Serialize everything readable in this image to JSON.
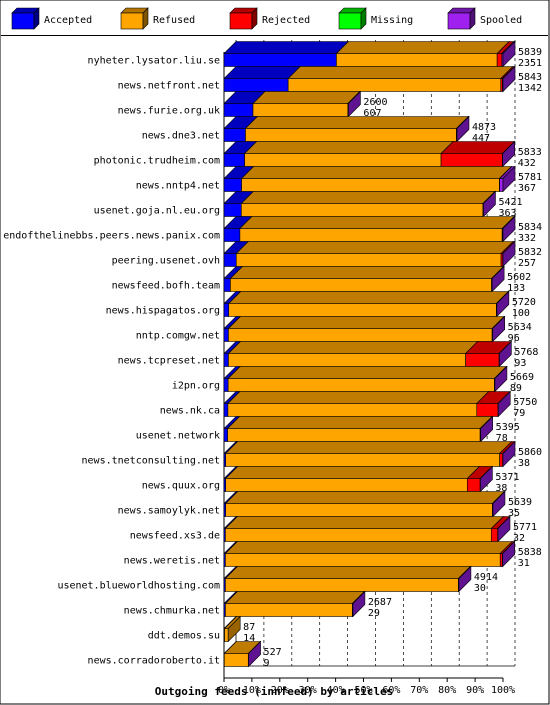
{
  "chart_data": {
    "type": "bar",
    "orientation": "horizontal",
    "stacked": true,
    "percent_scale": true,
    "title": "Outgoing feeds (innfeed) by articles",
    "legend_position": "top",
    "grid": true,
    "xlim": [
      0,
      100
    ],
    "x_ticks": [
      "0%",
      "10%",
      "20%",
      "30%",
      "40%",
      "50%",
      "60%",
      "70%",
      "80%",
      "90%",
      "100%"
    ],
    "series": [
      {
        "name": "Accepted",
        "color": "#0000ff"
      },
      {
        "name": "Refused",
        "color": "#ffa500"
      },
      {
        "name": "Rejected",
        "color": "#ff0000"
      },
      {
        "name": "Missing",
        "color": "#00ff00"
      },
      {
        "name": "Spooled",
        "color": "#a020f0"
      }
    ],
    "rows": [
      {
        "label": "nyheter.lysator.liu.se",
        "offered": 5839,
        "accepted": 2351,
        "segments": [
          40.3,
          57.6,
          1.7,
          0,
          0.4
        ]
      },
      {
        "label": "news.netfront.net",
        "offered": 5843,
        "accepted": 1342,
        "segments": [
          23.0,
          76.2,
          0.6,
          0,
          0.2
        ]
      },
      {
        "label": "news.furie.org.uk",
        "offered": 2600,
        "accepted": 607,
        "segments": [
          10.4,
          34.0,
          0.1,
          0,
          0.1
        ]
      },
      {
        "label": "news.dne3.net",
        "offered": 4873,
        "accepted": 447,
        "segments": [
          7.7,
          75.6,
          0.1,
          0,
          0.1
        ]
      },
      {
        "label": "photonic.trudheim.com",
        "offered": 5833,
        "accepted": 432,
        "segments": [
          7.4,
          70.4,
          22.0,
          0,
          0.1
        ]
      },
      {
        "label": "news.nntp4.net",
        "offered": 5781,
        "accepted": 367,
        "segments": [
          6.3,
          92.4,
          0.1,
          0,
          1.2
        ]
      },
      {
        "label": "usenet.goja.nl.eu.org",
        "offered": 5421,
        "accepted": 363,
        "segments": [
          6.2,
          86.6,
          0.1,
          0,
          0.1
        ]
      },
      {
        "label": "endofthelinebbs.peers.news.panix.com",
        "offered": 5834,
        "accepted": 332,
        "segments": [
          5.7,
          94.0,
          0.2,
          0,
          0.1
        ]
      },
      {
        "label": "peering.usenet.ovh",
        "offered": 5832,
        "accepted": 257,
        "segments": [
          4.4,
          94.9,
          0.6,
          0,
          0.1
        ]
      },
      {
        "label": "newsfeed.bofh.team",
        "offered": 5602,
        "accepted": 133,
        "segments": [
          2.3,
          93.6,
          0.1,
          0,
          0.1
        ]
      },
      {
        "label": "news.hispagatos.org",
        "offered": 5720,
        "accepted": 100,
        "segments": [
          1.7,
          95.9,
          0.1,
          0,
          0.1
        ]
      },
      {
        "label": "nntp.comgw.net",
        "offered": 5634,
        "accepted": 96,
        "segments": [
          1.6,
          94.5,
          0.1,
          0,
          0.1
        ]
      },
      {
        "label": "news.tcpreset.net",
        "offered": 5768,
        "accepted": 93,
        "segments": [
          1.6,
          85.0,
          12.0,
          0,
          0.1
        ]
      },
      {
        "label": "i2pn.org",
        "offered": 5669,
        "accepted": 89,
        "segments": [
          1.5,
          95.4,
          0.1,
          0,
          0.1
        ]
      },
      {
        "label": "news.nk.ca",
        "offered": 5750,
        "accepted": 79,
        "segments": [
          1.4,
          89.2,
          7.6,
          0,
          0.1
        ]
      },
      {
        "label": "usenet.network",
        "offered": 5395,
        "accepted": 78,
        "segments": [
          1.3,
          90.5,
          0.1,
          0,
          0.1
        ]
      },
      {
        "label": "news.tnetconsulting.net",
        "offered": 5860,
        "accepted": 38,
        "segments": [
          0.6,
          98.2,
          1.1,
          0,
          0.1
        ]
      },
      {
        "label": "news.quux.org",
        "offered": 5371,
        "accepted": 38,
        "segments": [
          0.6,
          86.6,
          4.6,
          0,
          0.1
        ]
      },
      {
        "label": "news.samoylyk.net",
        "offered": 5639,
        "accepted": 35,
        "segments": [
          0.6,
          95.6,
          0.1,
          0,
          0.1
        ]
      },
      {
        "label": "newsfeed.xs3.de",
        "offered": 5771,
        "accepted": 32,
        "segments": [
          0.5,
          95.3,
          2.3,
          0,
          0.1
        ]
      },
      {
        "label": "news.weretis.net",
        "offered": 5838,
        "accepted": 31,
        "segments": [
          0.5,
          98.5,
          0.8,
          0,
          0.1
        ]
      },
      {
        "label": "usenet.blueworldhosting.com",
        "offered": 4914,
        "accepted": 30,
        "segments": [
          0.5,
          83.5,
          0.1,
          0,
          0.1
        ]
      },
      {
        "label": "news.chmurka.net",
        "offered": 2687,
        "accepted": 29,
        "segments": [
          0.5,
          45.5,
          0.1,
          0,
          0.1
        ]
      },
      {
        "label": "ddt.demos.su",
        "offered": 87,
        "accepted": 14,
        "segments": [
          0.2,
          1.3,
          0,
          0,
          0
        ]
      },
      {
        "label": "news.corradoroberto.it",
        "offered": 527,
        "accepted": 9,
        "segments": [
          0.1,
          8.6,
          0,
          0,
          0.1
        ]
      }
    ]
  }
}
